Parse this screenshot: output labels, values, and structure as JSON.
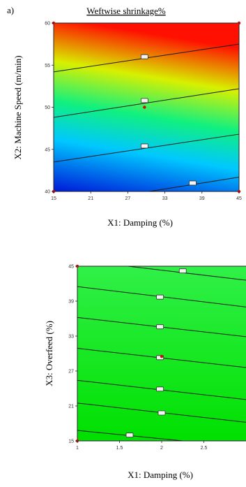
{
  "panel_label": "a)",
  "chart_data": [
    {
      "type": "contour",
      "title": "Weftwise shrinkage%",
      "xlabel": "X1: Damping (%)",
      "ylabel": "X2: Machine Speed (m/min)",
      "xlim": [
        15,
        45
      ],
      "ylim": [
        40,
        60
      ],
      "x_ticks": [
        "15",
        "21",
        "27",
        "33",
        "39",
        "45"
      ],
      "y_ticks": [
        "40",
        "45",
        "50",
        "55",
        "60"
      ],
      "colormap": [
        "#0018d8",
        "#00c8ff",
        "#10f080",
        "#d8f000",
        "#ff1000"
      ],
      "contours": [
        {
          "x": [
            15,
            45
          ],
          "y": [
            54.2,
            57.5
          ]
        },
        {
          "x": [
            15,
            45
          ],
          "y": [
            48.8,
            52.2
          ]
        },
        {
          "x": [
            15,
            45
          ],
          "y": [
            43.5,
            46.8
          ]
        },
        {
          "x": [
            30.5,
            45
          ],
          "y": [
            40,
            41.7
          ]
        }
      ],
      "contour_label_points": [
        {
          "x": 29.7,
          "y": 56.0
        },
        {
          "x": 29.7,
          "y": 50.8
        },
        {
          "x": 29.7,
          "y": 45.4
        },
        {
          "x": 37.5,
          "y": 41.0
        }
      ],
      "design_points": [
        {
          "x": 15,
          "y": 60
        },
        {
          "x": 45,
          "y": 60
        },
        {
          "x": 15,
          "y": 40
        },
        {
          "x": 45,
          "y": 40
        },
        {
          "x": 29.7,
          "y": 50
        }
      ]
    },
    {
      "type": "contour",
      "title": "",
      "xlabel": "X1: Damping (%)",
      "ylabel": "X3: Overfeed (%)",
      "xlim": [
        1,
        3
      ],
      "ylim": [
        15,
        45
      ],
      "x_ticks": [
        "1",
        "1.5",
        "2",
        "2.5"
      ],
      "y_ticks": [
        "15",
        "21",
        "27",
        "33",
        "39",
        "45"
      ],
      "colormap": [
        "#00e000",
        "#30f048"
      ],
      "contours": [
        {
          "x": [
            1.6,
            3
          ],
          "y": [
            45,
            42.6
          ]
        },
        {
          "x": [
            1,
            3
          ],
          "y": [
            41.5,
            38.0
          ]
        },
        {
          "x": [
            1,
            3
          ],
          "y": [
            36.2,
            32.9
          ]
        },
        {
          "x": [
            1,
            3
          ],
          "y": [
            30.9,
            27.6
          ]
        },
        {
          "x": [
            1,
            3
          ],
          "y": [
            25.4,
            22.1
          ]
        },
        {
          "x": [
            1,
            3
          ],
          "y": [
            21.5,
            18.2
          ]
        },
        {
          "x": [
            1,
            2.25
          ],
          "y": [
            16.8,
            15
          ]
        }
      ],
      "contour_label_points": [
        {
          "x": 2.25,
          "y": 44.2
        },
        {
          "x": 1.98,
          "y": 39.7
        },
        {
          "x": 1.98,
          "y": 34.6
        },
        {
          "x": 1.98,
          "y": 29.3
        },
        {
          "x": 1.98,
          "y": 23.9
        },
        {
          "x": 2.0,
          "y": 19.8
        },
        {
          "x": 1.62,
          "y": 16.0
        }
      ],
      "design_points": [
        {
          "x": 1,
          "y": 45
        },
        {
          "x": 1,
          "y": 15
        },
        {
          "x": 2,
          "y": 29.5
        }
      ]
    }
  ]
}
